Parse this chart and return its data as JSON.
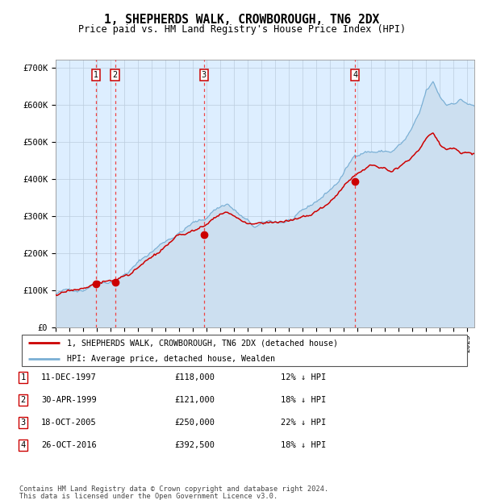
{
  "title": "1, SHEPHERDS WALK, CROWBOROUGH, TN6 2DX",
  "subtitle": "Price paid vs. HM Land Registry's House Price Index (HPI)",
  "ylim": [
    0,
    720000
  ],
  "xlim_start": 1995.0,
  "xlim_end": 2025.5,
  "yticks": [
    0,
    100000,
    200000,
    300000,
    400000,
    500000,
    600000,
    700000
  ],
  "ytick_labels": [
    "£0",
    "£100K",
    "£200K",
    "£300K",
    "£400K",
    "£500K",
    "£600K",
    "£700K"
  ],
  "xtick_years": [
    1995,
    1996,
    1997,
    1998,
    1999,
    2000,
    2001,
    2002,
    2003,
    2004,
    2005,
    2006,
    2007,
    2008,
    2009,
    2010,
    2011,
    2012,
    2013,
    2014,
    2015,
    2016,
    2017,
    2018,
    2019,
    2020,
    2021,
    2022,
    2023,
    2024,
    2025
  ],
  "hpi_fill_color": "#ccdff0",
  "hpi_line_color": "#7aafd4",
  "red_line_color": "#cc0000",
  "sale_dot_color": "#cc0000",
  "dashed_line_color": "#ee4444",
  "box_edge_color": "#cc0000",
  "bg_color": "#ddeeff",
  "grid_color": "#bbccdd",
  "sales": [
    {
      "num": 1,
      "year": 1997.94,
      "price": 118000
    },
    {
      "num": 2,
      "year": 1999.33,
      "price": 121000
    },
    {
      "num": 3,
      "year": 2005.8,
      "price": 250000
    },
    {
      "num": 4,
      "year": 2016.82,
      "price": 392500
    }
  ],
  "legend_line1": "1, SHEPHERDS WALK, CROWBOROUGH, TN6 2DX (detached house)",
  "legend_line2": "HPI: Average price, detached house, Wealden",
  "footer1": "Contains HM Land Registry data © Crown copyright and database right 2024.",
  "footer2": "This data is licensed under the Open Government Licence v3.0.",
  "table_rows": [
    [
      "1",
      "11-DEC-1997",
      "£118,000",
      "12% ↓ HPI"
    ],
    [
      "2",
      "30-APR-1999",
      "£121,000",
      "18% ↓ HPI"
    ],
    [
      "3",
      "18-OCT-2005",
      "£250,000",
      "22% ↓ HPI"
    ],
    [
      "4",
      "26-OCT-2016",
      "£392,500",
      "18% ↓ HPI"
    ]
  ]
}
